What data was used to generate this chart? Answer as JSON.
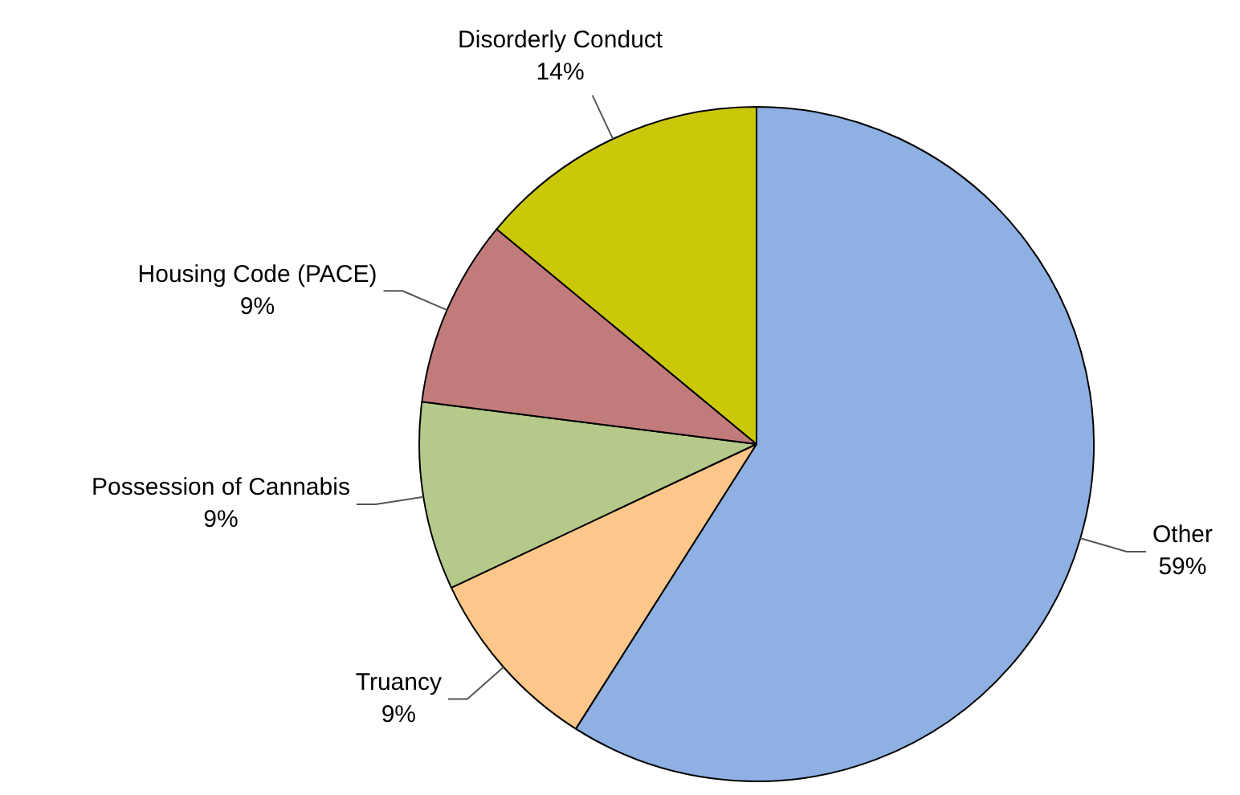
{
  "chart_data": {
    "type": "pie",
    "categories": [
      "Other",
      "Truancy",
      "Possession of Cannabis",
      "Housing Code (PACE)",
      "Disorderly Conduct"
    ],
    "values": [
      59,
      9,
      9,
      9,
      14
    ],
    "value_labels": [
      "59%",
      "9%",
      "9%",
      "9%",
      "14%"
    ],
    "colors": [
      "#8eb0e2",
      "#fdc68a",
      "#b5c98a",
      "#c27b7b",
      "#c9c90a"
    ],
    "legend": false
  }
}
